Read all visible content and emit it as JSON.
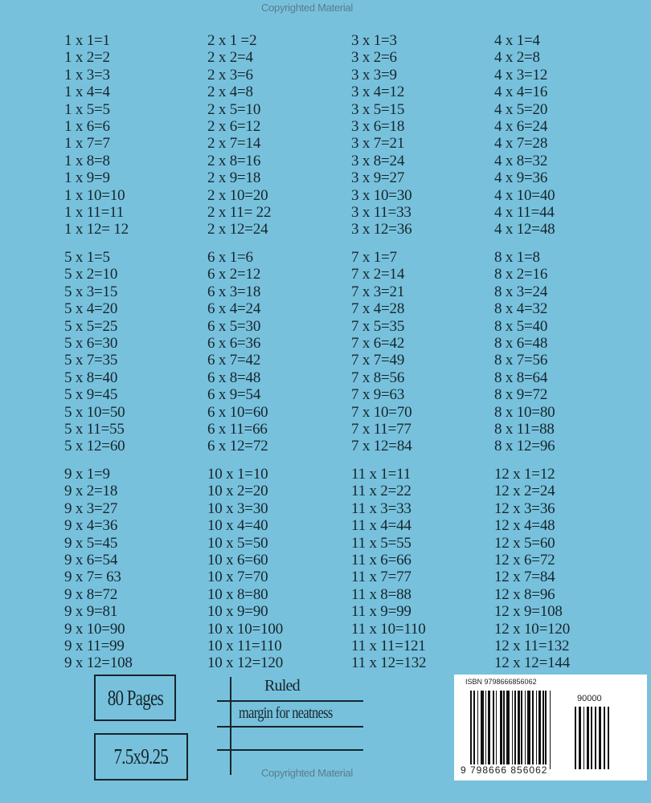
{
  "watermark_top": "Copyrighted Material",
  "watermark_bottom": "Copyrighted Material",
  "groups": [
    [
      [
        "1 x 1=1",
        "1 x 2=2",
        "1 x 3=3",
        "1 x 4=4",
        "1 x 5=5",
        "1 x 6=6",
        "1 x 7=7",
        "1 x 8=8",
        "1 x 9=9",
        "1 x 10=10",
        "1 x 11=11",
        "1 x 12= 12"
      ],
      [
        "2 x 1 =2",
        "2 x 2=4",
        "2 x 3=6",
        "2 x 4=8",
        "2 x 5=10",
        "2 x 6=12",
        "2 x 7=14",
        "2 x 8=16",
        "2 x 9=18",
        "2 x 10=20",
        "2 x 11= 22",
        "2 x 12=24"
      ],
      [
        "3 x 1=3",
        "3 x 2=6",
        "3 x 3=9",
        "3 x 4=12",
        "3 x 5=15",
        "3 x 6=18",
        "3 x 7=21",
        "3 x 8=24",
        "3 x 9=27",
        "3 x 10=30",
        "3 x 11=33",
        "3 x 12=36"
      ],
      [
        "4 x 1=4",
        "4 x 2=8",
        "4 x 3=12",
        "4 x 4=16",
        "4 x 5=20",
        "4 x 6=24",
        "4 x 7=28",
        "4 x 8=32",
        "4 x 9=36",
        "4 x 10=40",
        "4 x 11=44",
        "4 x 12=48"
      ]
    ],
    [
      [
        "5 x 1=5",
        "5 x 2=10",
        "5 x 3=15",
        "5 x 4=20",
        "5 x 5=25",
        "5 x 6=30",
        "5 x 7=35",
        "5 x 8=40",
        "5 x 9=45",
        "5 x 10=50",
        "5 x 11=55",
        "5 x 12=60"
      ],
      [
        "6 x 1=6",
        "6 x 2=12",
        "6 x 3=18",
        "6 x 4=24",
        "6 x 5=30",
        "6 x 6=36",
        "6 x 7=42",
        "6 x 8=48",
        "6 x 9=54",
        "6 x 10=60",
        "6 x 11=66",
        "6 x 12=72"
      ],
      [
        "7 x 1=7",
        "7 x 2=14",
        "7 x 3=21",
        "7 x 4=28",
        "7 x 5=35",
        "7 x 6=42",
        "7 x 7=49",
        "7 x 8=56",
        "7 x 9=63",
        "7 x 10=70",
        "7 x 11=77",
        "7 x 12=84"
      ],
      [
        "8 x 1=8",
        "8 x 2=16",
        "8 x 3=24",
        "8 x 4=32",
        "8 x 5=40",
        "8 x 6=48",
        "8 x 7=56",
        "8 x 8=64",
        "8 x 9=72",
        "8 x 10=80",
        "8 x 11=88",
        "8 x 12=96"
      ]
    ],
    [
      [
        "9 x 1=9",
        "9 x 2=18",
        "9 x 3=27",
        "9 x 4=36",
        "9 x 5=45",
        "9 x 6=54",
        "9 x 7= 63",
        "9 x 8=72",
        "9 x 9=81",
        "9 x 10=90",
        "9 x 11=99",
        "9 x 12=108"
      ],
      [
        "10 x 1=10",
        "10 x 2=20",
        "10 x 3=30",
        "10 x 4=40",
        "10 x 5=50",
        "10 x 6=60",
        "10 x 7=70",
        "10 x 8=80",
        "10 x 9=90",
        "10 x 10=100",
        "10 x 11=110",
        "10 x 12=120"
      ],
      [
        "11 x 1=11",
        "11 x 2=22",
        "11 x 3=33",
        "11 x 4=44",
        "11 x 5=55",
        "11 x 6=66",
        "11 x 7=77",
        "11 x 8=88",
        "11 x 9=99",
        "11 x 10=110",
        "11 x 11=121",
        "11 x 12=132"
      ],
      [
        "12 x 1=12",
        "12 x 2=24",
        "12 x 3=36",
        "12 x 4=48",
        "12 x 5=60",
        "12 x 6=72",
        "12 x 7=84",
        "12 x 8=96",
        "12 x 9=108",
        "12 x 10=120",
        "12 x 11=132",
        "12 x 12=144"
      ]
    ]
  ],
  "info": {
    "pages": "80 Pages",
    "size": "7.5x9.25",
    "ruled": "Ruled",
    "margin": "margin for neatness"
  },
  "barcode": {
    "isbn_label": "ISBN 9798666856062",
    "price_code": "90000",
    "number": "9  798666  856062"
  },
  "colors": {
    "background": "#78c1dc",
    "text": "#15262c"
  }
}
